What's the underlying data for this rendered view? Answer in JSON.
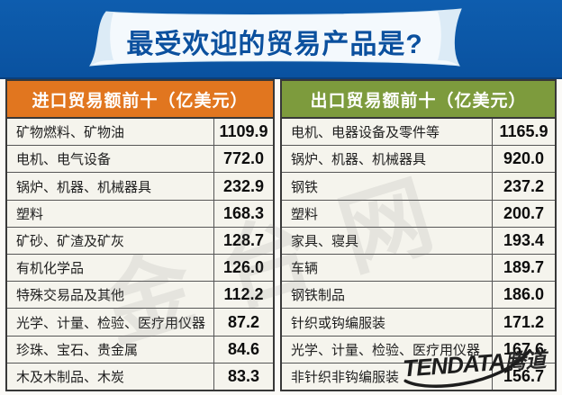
{
  "title": "最受欢迎的贸易产品是?",
  "tables": {
    "import": {
      "header": "进口贸易额前十（亿美元）",
      "rows": [
        {
          "label": "矿物燃料、矿物油",
          "value": "1109.9"
        },
        {
          "label": "电机、电气设备",
          "value": "772.0"
        },
        {
          "label": "锅炉、机器、机械器具",
          "value": "232.9"
        },
        {
          "label": "塑料",
          "value": "168.3"
        },
        {
          "label": "矿砂、矿渣及矿灰",
          "value": "128.7"
        },
        {
          "label": "有机化学品",
          "value": "126.0"
        },
        {
          "label": "特殊交易品及其他",
          "value": "112.2"
        },
        {
          "label": "光学、计量、检验、医疗用仪器",
          "value": "87.2"
        },
        {
          "label": "珍珠、宝石、贵金属",
          "value": "84.6"
        },
        {
          "label": "木及木制品、木炭",
          "value": "83.3"
        }
      ]
    },
    "export": {
      "header": "出口贸易额前十（亿美元）",
      "rows": [
        {
          "label": "电机、电器设备及零件等",
          "value": "1165.9"
        },
        {
          "label": "锅炉、机器、机械器具",
          "value": "920.0"
        },
        {
          "label": "钢铁",
          "value": "237.2"
        },
        {
          "label": "塑料",
          "value": "200.7"
        },
        {
          "label": "家具、寝具",
          "value": "193.4"
        },
        {
          "label": "车辆",
          "value": "189.7"
        },
        {
          "label": "钢铁制品",
          "value": "186.0"
        },
        {
          "label": "针织或钩编服装",
          "value": "171.2"
        },
        {
          "label": "光学、计量、检验、医疗用仪器",
          "value": "167.6"
        },
        {
          "label": "非针织非钩编服装",
          "value": "156.7"
        }
      ]
    }
  },
  "watermark": {
    "text": "金台网"
  },
  "logo": {
    "latin": "TENDATA",
    "cjk": "腾道"
  },
  "colors": {
    "banner_blue": "#0b57a7",
    "title_blue": "#0b509e",
    "ribbon_white": "#f4f9fd",
    "import_header_orange": "#e1761f",
    "export_header_green": "#7d9b3d",
    "row_background": "#f5f4ed",
    "value_text": "#0d0d0d"
  },
  "chart_data": [
    {
      "type": "table",
      "title": "进口贸易额前十（亿美元）",
      "categories": [
        "矿物燃料、矿物油",
        "电机、电气设备",
        "锅炉、机器、机械器具",
        "塑料",
        "矿砂、矿渣及矿灰",
        "有机化学品",
        "特殊交易品及其他",
        "光学、计量、检验、医疗用仪器",
        "珍珠、宝石、贵金属",
        "木及木制品、木炭"
      ],
      "values": [
        1109.9,
        772.0,
        232.9,
        168.3,
        128.7,
        126.0,
        112.2,
        87.2,
        84.6,
        83.3
      ]
    },
    {
      "type": "table",
      "title": "出口贸易额前十（亿美元）",
      "categories": [
        "电机、电器设备及零件等",
        "锅炉、机器、机械器具",
        "钢铁",
        "塑料",
        "家具、寝具",
        "车辆",
        "钢铁制品",
        "针织或钩编服装",
        "光学、计量、检验、医疗用仪器",
        "非针织非钩编服装"
      ],
      "values": [
        1165.9,
        920.0,
        237.2,
        200.7,
        193.4,
        189.7,
        186.0,
        171.2,
        167.6,
        156.7
      ]
    }
  ]
}
